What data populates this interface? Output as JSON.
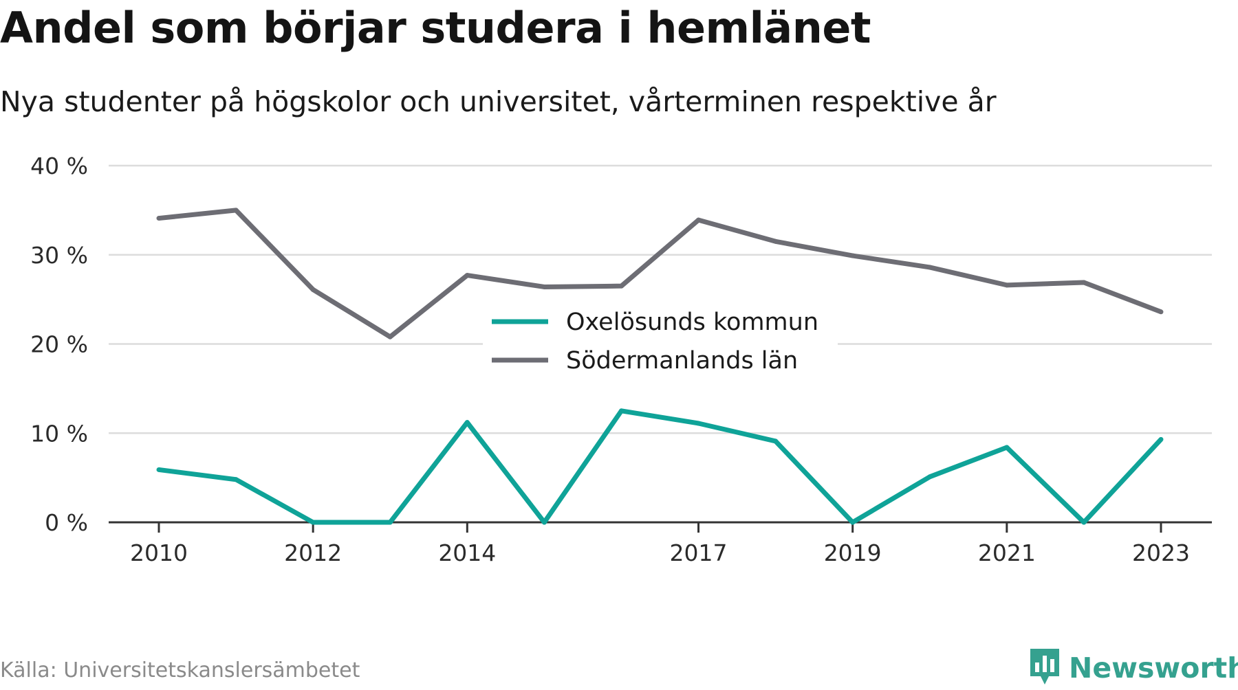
{
  "header": {
    "title": "Andel som börjar studera i hemlänet",
    "subtitle": "Nya studenter på högskolor och universitet, vårterminen respektive år"
  },
  "footer": {
    "source": "Källa: Universitetskanslersämbetet",
    "brand": "Newsworthy",
    "brand_icon": "bar-chart-badge-icon"
  },
  "colors": {
    "oxelosund": "#0fa398",
    "sodermanland": "#6d6d74",
    "grid": "#dcdcdc",
    "axis": "#333333",
    "brand": "#35a18f"
  },
  "chart_data": {
    "type": "line",
    "x": [
      2010,
      2011,
      2012,
      2013,
      2014,
      2015,
      2016,
      2017,
      2018,
      2019,
      2020,
      2021,
      2022,
      2023
    ],
    "x_tick_values": [
      2010,
      2012,
      2014,
      2017,
      2019,
      2021,
      2023
    ],
    "x_tick_labels": [
      "2010",
      "2012",
      "2014",
      "2017",
      "2019",
      "2021",
      "2023"
    ],
    "y_tick_values": [
      0,
      10,
      20,
      30,
      40
    ],
    "y_tick_labels": [
      "0 %",
      "10 %",
      "20 %",
      "30 %",
      "40 %"
    ],
    "ylim": [
      0,
      40
    ],
    "grid": true,
    "legend_position": "center",
    "series": [
      {
        "name": "Oxelösunds kommun",
        "color_key": "oxelosund",
        "values": [
          5.9,
          4.8,
          0,
          0,
          11.2,
          0,
          12.5,
          11.1,
          9.1,
          0,
          5.1,
          8.4,
          0,
          9.3
        ]
      },
      {
        "name": "Södermanlands län",
        "color_key": "sodermanland",
        "values": [
          34.1,
          35.0,
          26.1,
          20.8,
          27.7,
          26.4,
          26.5,
          33.9,
          31.5,
          29.9,
          28.6,
          26.6,
          26.9,
          23.6
        ]
      }
    ]
  }
}
